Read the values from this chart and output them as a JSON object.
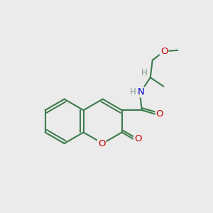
{
  "bg_color": "#ebebeb",
  "atom_color_C": "#3d7a4a",
  "atom_color_O": "#cc0000",
  "atom_color_N": "#0000cc",
  "atom_color_H": "#7a9a8a",
  "line_color": "#3d7a4a",
  "line_width": 1.5,
  "font_size_atom": 9.5,
  "font_size_H": 8.5,
  "xlim": [
    0,
    10
  ],
  "ylim": [
    0,
    10
  ]
}
